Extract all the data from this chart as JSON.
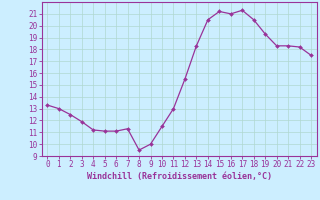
{
  "x": [
    0,
    1,
    2,
    3,
    4,
    5,
    6,
    7,
    8,
    9,
    10,
    11,
    12,
    13,
    14,
    15,
    16,
    17,
    18,
    19,
    20,
    21,
    22,
    23
  ],
  "y": [
    13.3,
    13.0,
    12.5,
    11.9,
    11.2,
    11.1,
    11.1,
    11.3,
    9.5,
    10.0,
    11.5,
    13.0,
    15.5,
    18.3,
    20.5,
    21.2,
    21.0,
    21.3,
    20.5,
    19.3,
    18.3,
    18.3,
    18.2,
    17.5
  ],
  "line_color": "#993399",
  "marker": "D",
  "marker_size": 2.0,
  "line_width": 0.9,
  "bg_color": "#cceeff",
  "grid_color": "#aaddcc",
  "xlabel": "Windchill (Refroidissement éolien,°C)",
  "xlabel_fontsize": 6.0,
  "tick_fontsize": 5.5,
  "xlim": [
    -0.5,
    23.5
  ],
  "ylim": [
    9,
    22
  ],
  "yticks": [
    9,
    10,
    11,
    12,
    13,
    14,
    15,
    16,
    17,
    18,
    19,
    20,
    21
  ],
  "xticks": [
    0,
    1,
    2,
    3,
    4,
    5,
    6,
    7,
    8,
    9,
    10,
    11,
    12,
    13,
    14,
    15,
    16,
    17,
    18,
    19,
    20,
    21,
    22,
    23
  ],
  "spine_color": "#993399",
  "tick_color": "#993399",
  "label_color": "#993399",
  "grid_color_white": "#c8eee8"
}
